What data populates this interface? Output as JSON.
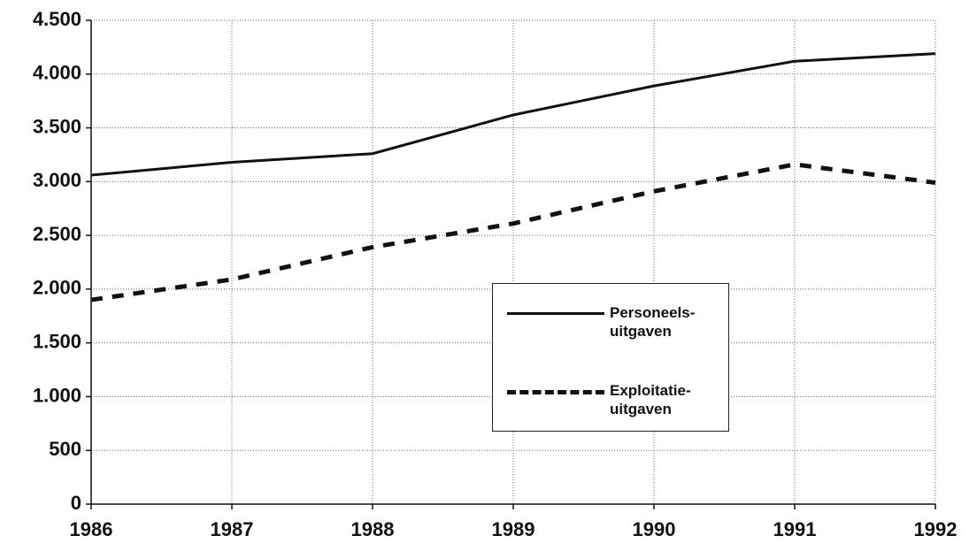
{
  "chart_data": {
    "type": "line",
    "x": [
      1986,
      1987,
      1988,
      1989,
      1990,
      1991,
      1992
    ],
    "series": [
      {
        "name": "Personeels- uitgaven",
        "color": "#111111",
        "dash": false,
        "values": [
          3060,
          3180,
          3260,
          3620,
          3890,
          4120,
          4190
        ]
      },
      {
        "name": "Exploitatie- uitgaven",
        "color": "#111111",
        "dash": true,
        "values": [
          1900,
          2090,
          2390,
          2610,
          2910,
          3160,
          2990
        ]
      }
    ],
    "xlim": [
      1986,
      1992
    ],
    "xticks": [
      1986,
      1987,
      1988,
      1989,
      1990,
      1991,
      1992
    ],
    "ylim": [
      0,
      4500
    ],
    "yticks": [
      0,
      500,
      {
        "value": 1000,
        "label": "1.000"
      },
      {
        "value": 1500,
        "label": "1.500"
      },
      {
        "value": 2000,
        "label": "2.000"
      },
      {
        "value": 2500,
        "label": "2.500"
      },
      {
        "value": 3000,
        "label": "3.000"
      },
      {
        "value": 3500,
        "label": "3.500"
      },
      {
        "value": 4000,
        "label": "4.000"
      },
      {
        "value": 4500,
        "label": "4.500"
      }
    ],
    "grid": true
  }
}
